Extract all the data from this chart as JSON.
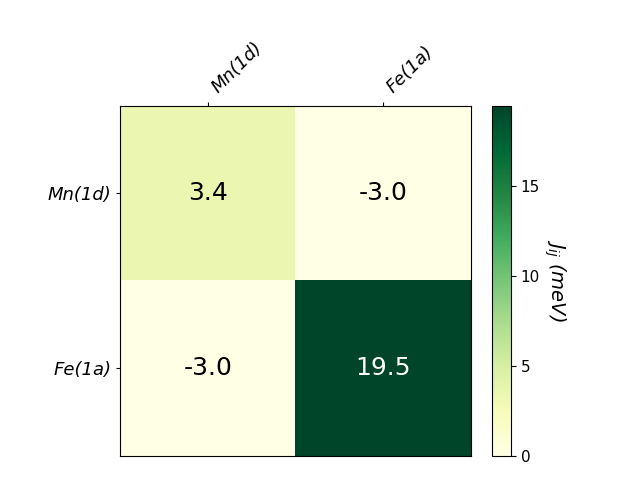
{
  "labels": [
    "Mn(1d)",
    "Fe(1a)"
  ],
  "matrix": [
    [
      3.4,
      -3.0
    ],
    [
      -3.0,
      19.5
    ]
  ],
  "vmin": 0,
  "vmax": 19.5,
  "cmap": "YlGn",
  "colorbar_label": "$J_{ij}$ (meV)",
  "colorbar_ticks": [
    0,
    5,
    10,
    15
  ],
  "text_colors": {
    "dark_threshold": 10,
    "dark_color": "white",
    "light_color": "black"
  },
  "fontsize_annot": 18,
  "fontsize_tick": 13,
  "fontsize_cbar": 14
}
